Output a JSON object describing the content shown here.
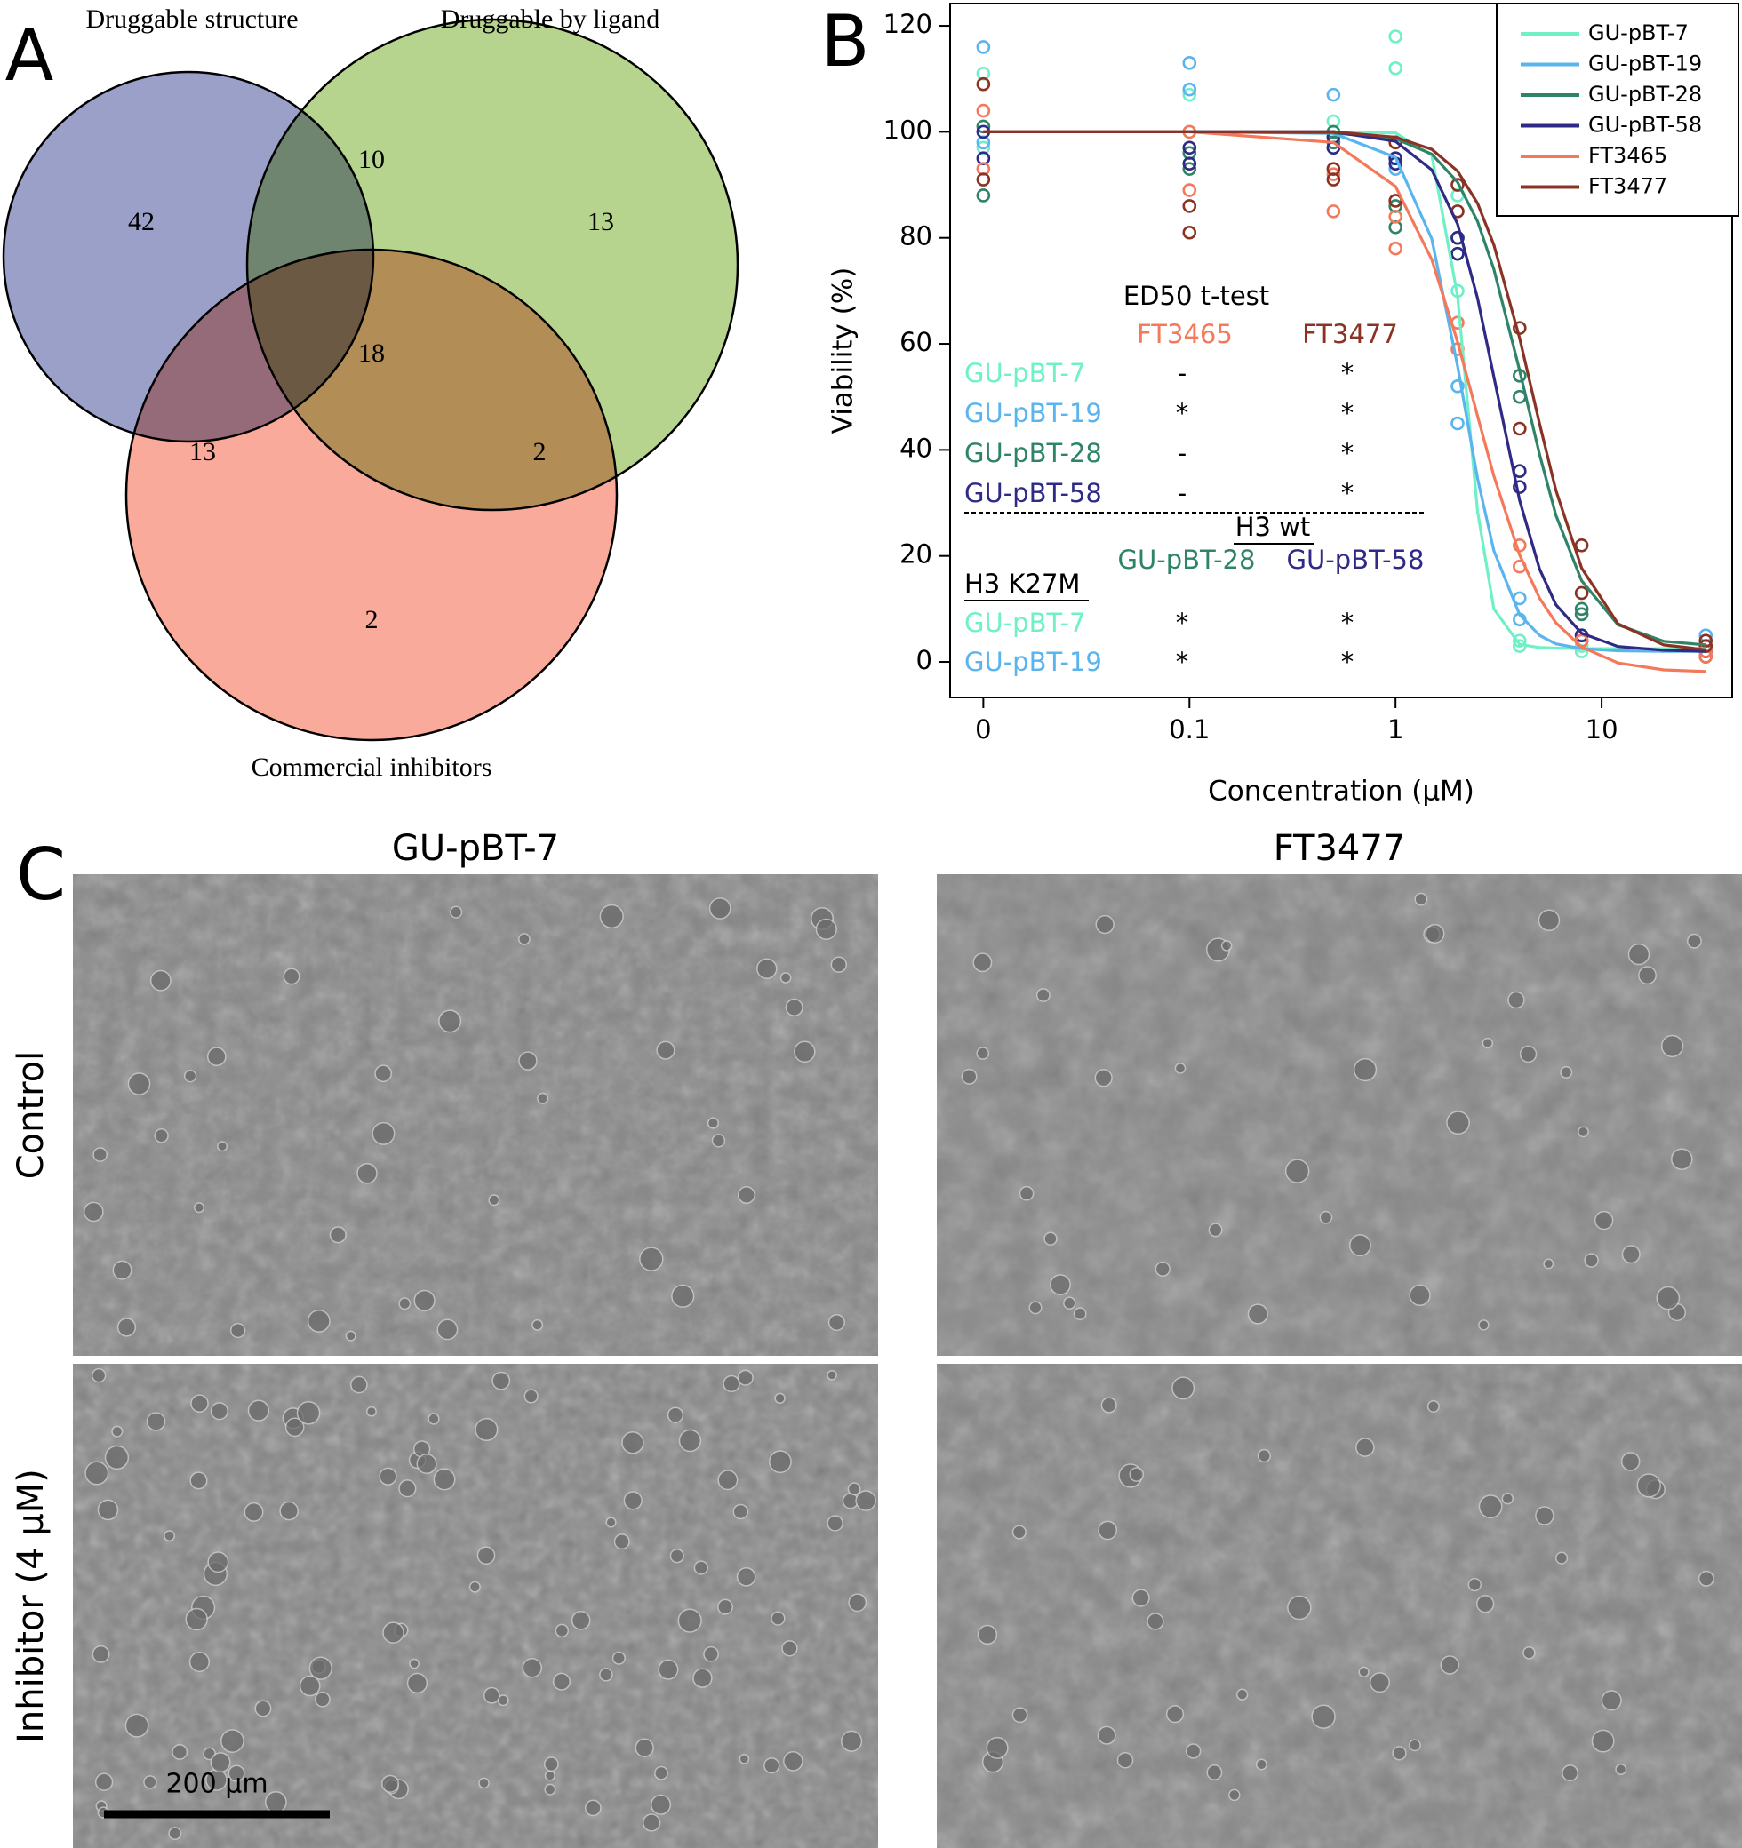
{
  "chart_data": [
    {
      "type": "venn",
      "label": "A",
      "sets": [
        {
          "name": "Druggable structure",
          "color": "#9aa0c8"
        },
        {
          "name": "Druggable by ligand",
          "color": "#b7d48e"
        },
        {
          "name": "Commercial inhibitors",
          "color": "#f9aa9a"
        }
      ],
      "values": [
        42,
        10,
        13,
        18,
        13,
        2,
        2
      ]
    },
    {
      "type": "line",
      "label": "B",
      "xscale": "log",
      "x_label": "Concentration (μM)",
      "y_label": "Viability (%)",
      "xlim": [
        0.0069,
        43
      ],
      "ylim": [
        -6.7,
        124.2
      ],
      "xticks": [
        {
          "value": 0.01,
          "label": "0"
        },
        0.1,
        1,
        10
      ],
      "yticks": [
        0,
        20,
        40,
        60,
        80,
        100,
        120
      ],
      "legend": "top-right",
      "curve_x": [
        0.01,
        0.1,
        0.5,
        1,
        1.5,
        2,
        2.5,
        3,
        4,
        5,
        6,
        8,
        12,
        20,
        32
      ],
      "points_x": [
        0.01,
        0.01,
        0.1,
        0.1,
        0.5,
        0.5,
        1,
        1,
        2,
        2,
        4,
        4,
        8,
        8,
        32,
        32
      ],
      "series": [
        {
          "name": "GU-pBT-7",
          "color": "#6ff0c6",
          "values": [
            100,
            100,
            100,
            99.8,
            95.6,
            69.0,
            28.4,
            10.0,
            3.3,
            2.7,
            2.6,
            2.5,
            2.5,
            2.5,
            2.5
          ],
          "points_y": [
            111,
            97,
            107,
            100,
            102,
            99,
            118,
            112,
            88,
            70,
            4,
            3,
            2,
            3,
            2,
            3
          ]
        },
        {
          "name": "GU-pBT-19",
          "color": "#5ab4ee",
          "values": [
            100,
            100,
            99.7,
            95.2,
            79.8,
            55.8,
            34.6,
            21.0,
            8.9,
            5.0,
            3.4,
            2.5,
            2.1,
            2.0,
            2.0
          ],
          "points_y": [
            116,
            98,
            113,
            108,
            107,
            97,
            93,
            95,
            52,
            45,
            12,
            8,
            4,
            5,
            5,
            2
          ]
        },
        {
          "name": "GU-pBT-28",
          "color": "#2f8468",
          "values": [
            100,
            100,
            99.8,
            98.7,
            95.8,
            90.5,
            83.1,
            74.1,
            55.0,
            39.1,
            27.7,
            15.3,
            7.0,
            3.9,
            3.2
          ],
          "points_y": [
            88,
            101,
            96,
            93,
            100,
            98,
            86,
            82,
            80,
            77,
            54,
            50,
            10,
            9,
            2,
            3
          ]
        },
        {
          "name": "GU-pBT-58",
          "color": "#2e2a85",
          "values": [
            100,
            100,
            100,
            98.2,
            92.8,
            82.6,
            68.6,
            53.8,
            30.5,
            17.5,
            10.8,
            5.4,
            2.9,
            2.2,
            2.0
          ],
          "points_y": [
            95,
            100,
            97,
            94,
            99,
            97,
            95,
            94,
            80,
            77,
            36,
            33,
            5,
            4,
            1,
            2
          ]
        },
        {
          "name": "FT3465",
          "color": "#f4785a",
          "values": [
            100,
            100,
            98.0,
            89.7,
            75.9,
            60.4,
            46.4,
            35.1,
            20.2,
            12.0,
            7.4,
            2.8,
            -0.2,
            -1.5,
            -1.8
          ],
          "points_y": [
            93,
            104,
            100,
            89,
            85,
            92,
            84,
            78,
            64,
            59,
            22,
            18,
            4,
            4,
            1,
            2
          ]
        },
        {
          "name": "FT3477",
          "color": "#8a3325",
          "values": [
            100,
            100,
            100,
            99.0,
            96.7,
            92.6,
            86.5,
            78.7,
            61.1,
            44.9,
            32.4,
            17.7,
            7.2,
            3.2,
            2.3
          ],
          "points_y": [
            109,
            91,
            86,
            81,
            93,
            91,
            98,
            87,
            90,
            85,
            63,
            44,
            22,
            13,
            3,
            4
          ]
        }
      ],
      "ed50_table": {
        "title": "ED50 t-test",
        "columns": [
          "FT3465",
          "FT3477"
        ],
        "rows": [
          {
            "label": "GU-pBT-7",
            "cells": [
              "-",
              "*"
            ]
          },
          {
            "label": "GU-pBT-19",
            "cells": [
              "*",
              "*"
            ]
          },
          {
            "label": "GU-pBT-28",
            "cells": [
              "-",
              "*"
            ]
          },
          {
            "label": "GU-pBT-58",
            "cells": [
              "-",
              "*"
            ]
          }
        ]
      },
      "ed50_table_2": {
        "title": "H3 wt",
        "columns": [
          "GU-pBT-28",
          "GU-pBT-58"
        ],
        "group": "H3 K27M",
        "rows": [
          {
            "label": "GU-pBT-7",
            "cells": [
              "*",
              "*"
            ]
          },
          {
            "label": "GU-pBT-19",
            "cells": [
              "*",
              "*"
            ]
          }
        ]
      }
    }
  ],
  "micrographs": {
    "label": "C",
    "columns": [
      "GU-pBT-7",
      "FT3477"
    ],
    "rows": [
      "Control",
      "Inhibitor (4 μM)"
    ],
    "scale_bar": "200 μm"
  }
}
